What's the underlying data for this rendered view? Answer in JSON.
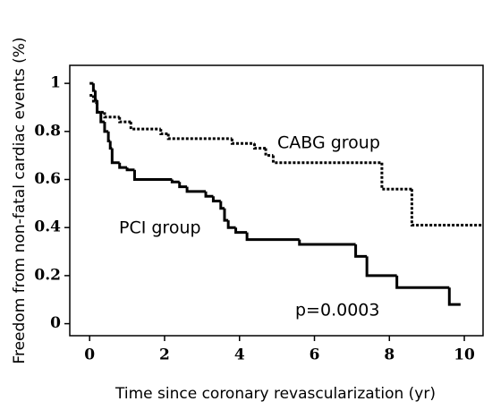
{
  "chart_data": {
    "type": "step",
    "x_label": "Time since coronary revascularization (yr)",
    "y_label": "Freedom from non-fatal cardiac events (%)",
    "annotations": [
      "CABG group",
      "PCI group",
      "p=0.0003"
    ],
    "xlim": [
      -0.53,
      10.5
    ],
    "ylim": [
      -0.05,
      1.075
    ],
    "xticks": [
      0,
      2,
      4,
      6,
      8,
      10
    ],
    "yticks": [
      0,
      0.2,
      0.4,
      0.6,
      0.8,
      1
    ],
    "series": [
      {
        "name": "CABG group",
        "color": "#000000",
        "dash": "3,2",
        "x": [
          0,
          0.1,
          0.2,
          0.4,
          0.8,
          1.1,
          1.9,
          2.1,
          3.8,
          4.4,
          4.7,
          4.9,
          7.8,
          8.6,
          10.5
        ],
        "values": [
          0.95,
          0.92,
          0.88,
          0.86,
          0.84,
          0.81,
          0.79,
          0.77,
          0.75,
          0.73,
          0.7,
          0.67,
          0.56,
          0.41,
          0.41
        ]
      },
      {
        "name": "PCI group",
        "color": "#000000",
        "dash": "none",
        "x": [
          0,
          0.1,
          0.15,
          0.2,
          0.3,
          0.4,
          0.5,
          0.55,
          0.6,
          0.8,
          1.0,
          1.2,
          2.2,
          2.4,
          2.6,
          3.1,
          3.3,
          3.5,
          3.6,
          3.7,
          3.9,
          4.2,
          5.6,
          7.1,
          7.4,
          8.2,
          9.6,
          9.9
        ],
        "values": [
          1.0,
          0.97,
          0.93,
          0.88,
          0.84,
          0.8,
          0.76,
          0.73,
          0.67,
          0.65,
          0.64,
          0.6,
          0.59,
          0.57,
          0.55,
          0.53,
          0.51,
          0.48,
          0.43,
          0.4,
          0.38,
          0.35,
          0.33,
          0.28,
          0.2,
          0.15,
          0.08,
          0.08
        ]
      }
    ]
  }
}
